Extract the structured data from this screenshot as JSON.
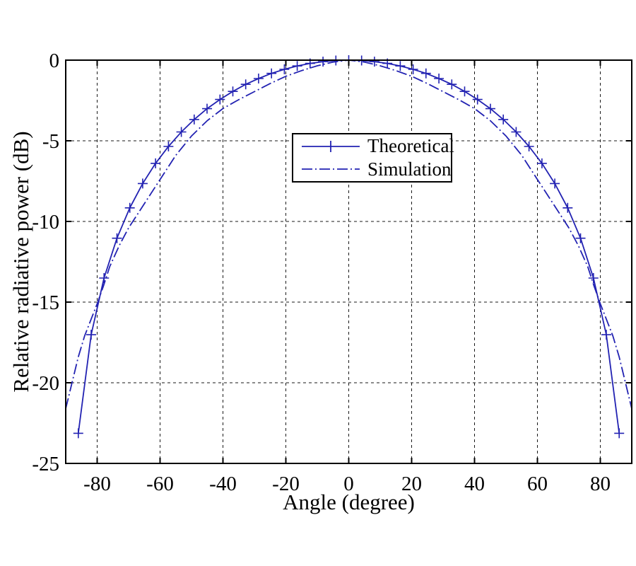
{
  "figure": {
    "background": "#ffffff",
    "line_color": "#2222b2",
    "grid_color": "#1a1a1a",
    "axis_color": "#000000",
    "text_color": "#000000"
  },
  "chart_data": {
    "type": "line",
    "title": "",
    "xlabel": "Angle (degree)",
    "ylabel": "Relative radiative power (dB)",
    "xlim": [
      -90,
      90
    ],
    "ylim": [
      -25,
      0
    ],
    "xticks": [
      -80,
      -60,
      -40,
      -20,
      0,
      20,
      40,
      60,
      80
    ],
    "yticks": [
      0,
      -5,
      -10,
      -15,
      -20,
      -25
    ],
    "grid": true,
    "legend_position": "upper-center-left",
    "series": [
      {
        "name": "Theoretical",
        "marker": "+",
        "linestyle": "solid",
        "x": [
          -86,
          -81.9,
          -77.81,
          -73.71,
          -69.62,
          -65.52,
          -61.43,
          -57.33,
          -53.24,
          -49.14,
          -45.05,
          -40.95,
          -36.86,
          -32.76,
          -28.67,
          -24.57,
          -20.48,
          -16.38,
          -12.29,
          -8.19,
          -4.1,
          0,
          4.1,
          8.19,
          12.29,
          16.38,
          20.48,
          24.57,
          28.67,
          32.76,
          36.86,
          40.95,
          45.05,
          49.14,
          53.24,
          57.33,
          61.43,
          65.52,
          69.62,
          73.71,
          77.81,
          81.9,
          86
        ],
        "y": [
          -23.13,
          -17.02,
          -13.51,
          -11.04,
          -9.16,
          -7.65,
          -6.4,
          -5.35,
          -4.45,
          -3.68,
          -3.01,
          -2.44,
          -1.94,
          -1.5,
          -1.14,
          -0.82,
          -0.57,
          -0.36,
          -0.2,
          -0.09,
          -0.02,
          0,
          -0.02,
          -0.09,
          -0.2,
          -0.36,
          -0.57,
          -0.82,
          -1.14,
          -1.5,
          -1.94,
          -2.44,
          -3.01,
          -3.68,
          -4.45,
          -5.35,
          -6.4,
          -7.65,
          -9.16,
          -11.04,
          -13.51,
          -17.02,
          -23.13
        ]
      },
      {
        "name": "Simulation",
        "marker": "none",
        "linestyle": "dash-dot",
        "x": [
          -90,
          -89,
          -88,
          -86,
          -84,
          -82,
          -80,
          -78,
          -76,
          -73,
          -70,
          -65,
          -60,
          -55,
          -50,
          -45,
          -40,
          -35,
          -30,
          -25,
          -20,
          -15,
          -10,
          -5,
          0,
          5,
          10,
          15,
          20,
          25,
          30,
          35,
          40,
          45,
          50,
          55,
          60,
          65,
          70,
          73,
          76,
          78,
          80,
          82,
          84,
          86,
          88,
          89,
          90
        ],
        "y": [
          -21.6,
          -20.8,
          -20.0,
          -18.4,
          -17.1,
          -16.1,
          -15.1,
          -14.0,
          -12.8,
          -11.5,
          -10.4,
          -8.9,
          -7.4,
          -5.9,
          -4.7,
          -3.75,
          -3.0,
          -2.45,
          -1.95,
          -1.45,
          -1.0,
          -0.65,
          -0.35,
          -0.12,
          0,
          -0.12,
          -0.35,
          -0.65,
          -1.0,
          -1.45,
          -1.95,
          -2.45,
          -3.0,
          -3.75,
          -4.7,
          -5.9,
          -7.4,
          -8.9,
          -10.4,
          -11.5,
          -12.8,
          -14.0,
          -15.1,
          -16.1,
          -17.1,
          -18.4,
          -20.0,
          -20.8,
          -21.6
        ]
      }
    ]
  },
  "legend": {
    "items": [
      {
        "label": "Theoretical"
      },
      {
        "label": "Simulation"
      }
    ]
  }
}
